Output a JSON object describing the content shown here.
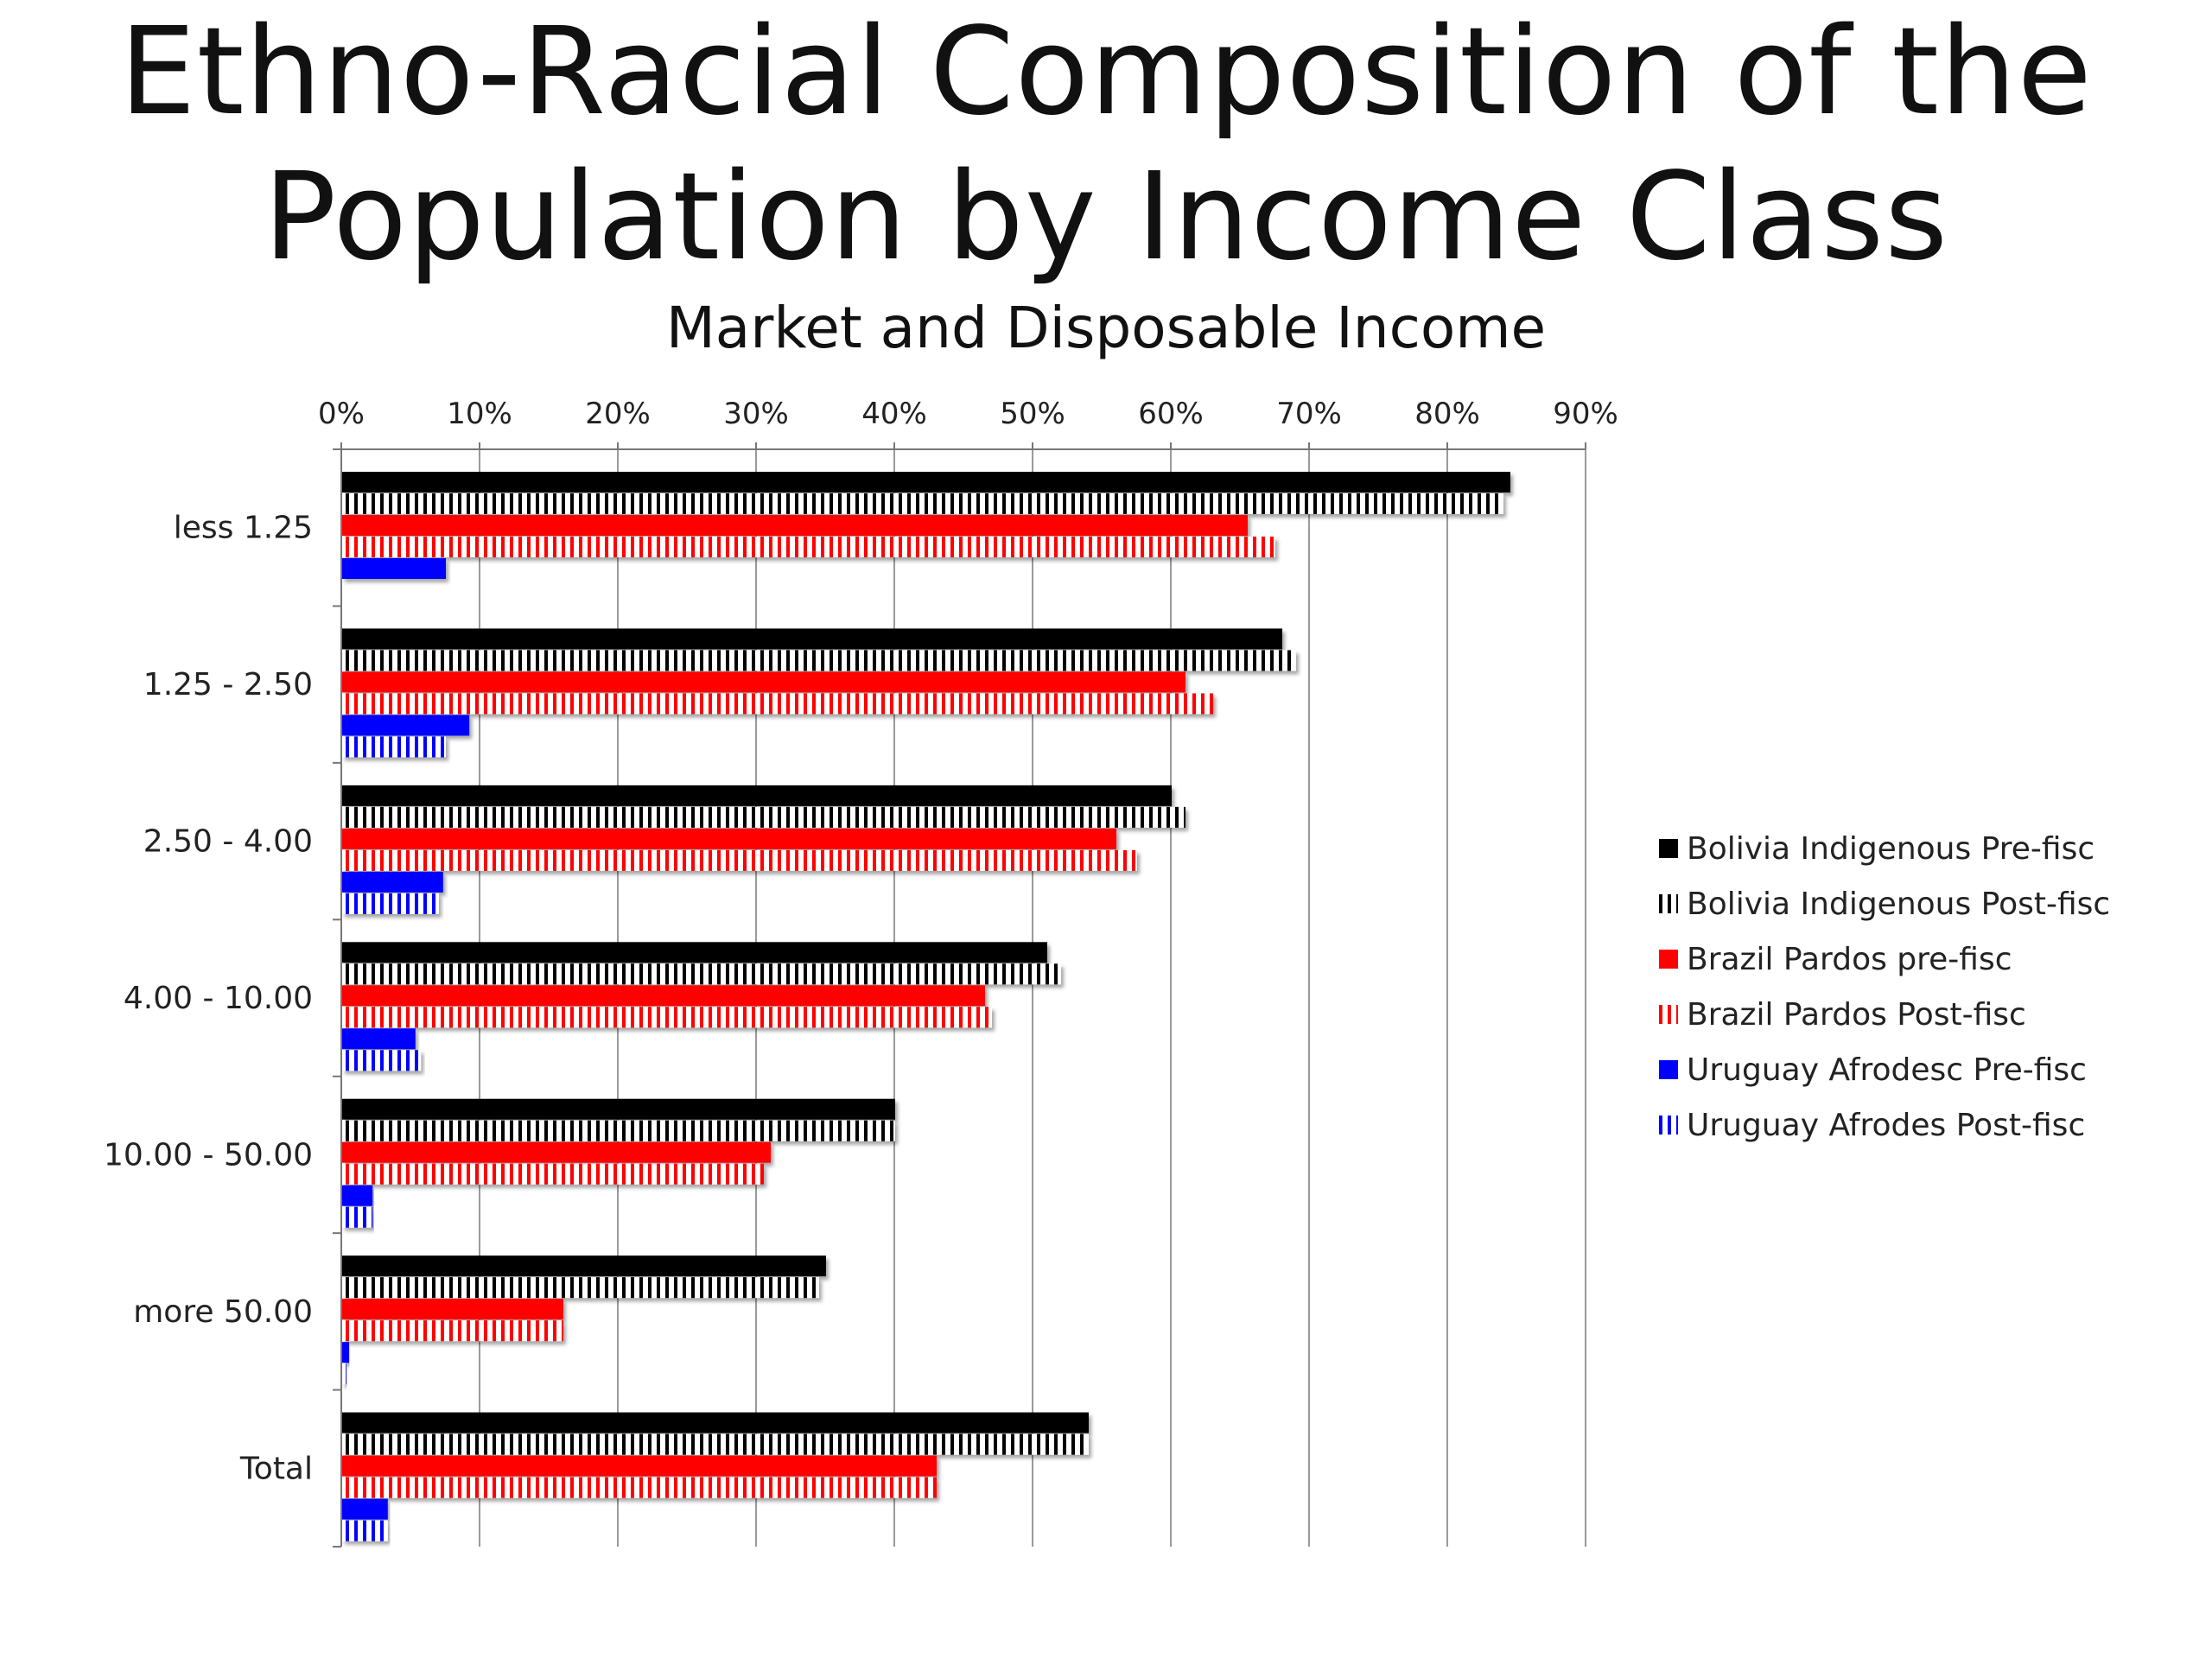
{
  "chart_data": {
    "type": "bar",
    "orientation": "horizontal",
    "title_lines": [
      "Ethno-Racial Composition of the",
      "Population by Income Class"
    ],
    "subtitle": "Market and Disposable Income",
    "categories": [
      "less 1.25",
      "1.25 - 2.50",
      "2.50 -  4.00",
      "4.00 - 10.00",
      "10.00 - 50.00",
      "more 50.00",
      "Total"
    ],
    "xlim": [
      0,
      90
    ],
    "x_ticks": [
      "0%",
      "10%",
      "20%",
      "30%",
      "40%",
      "50%",
      "60%",
      "70%",
      "80%",
      "90%"
    ],
    "grid": true,
    "legend_position": "right",
    "series": [
      {
        "name": "Bolivia Indigenous Pre-fisc",
        "color": "#000000",
        "pattern": "solid",
        "values": [
          84.5,
          68,
          60,
          51,
          40,
          35,
          54
        ]
      },
      {
        "name": "Bolivia Indigenous Post-fisc",
        "color": "#000000",
        "pattern": "vertical-stripes",
        "values": [
          84,
          69,
          61,
          52,
          40,
          34.5,
          54
        ]
      },
      {
        "name": "Brazil Pardos pre-fisc",
        "color": "#ff0000",
        "pattern": "solid",
        "values": [
          65.5,
          61,
          56,
          46.5,
          31,
          16,
          43
        ]
      },
      {
        "name": "Brazil Pardos Post-fisc",
        "color": "#ff0000",
        "pattern": "vertical-stripes",
        "values": [
          67.5,
          63,
          57.5,
          47,
          30.5,
          16,
          43
        ]
      },
      {
        "name": "Uruguay Afrodesc Pre-fisc",
        "color": "#0000ff",
        "pattern": "solid",
        "values": [
          7.5,
          9.2,
          7.3,
          5.3,
          2.2,
          0.5,
          3.3
        ]
      },
      {
        "name": "Uruguay Afrodes Post-fisc",
        "color": "#0000ff",
        "pattern": "vertical-stripes",
        "values": [
          0,
          7.5,
          7,
          5.7,
          2.2,
          0.3,
          3.3
        ]
      }
    ]
  }
}
